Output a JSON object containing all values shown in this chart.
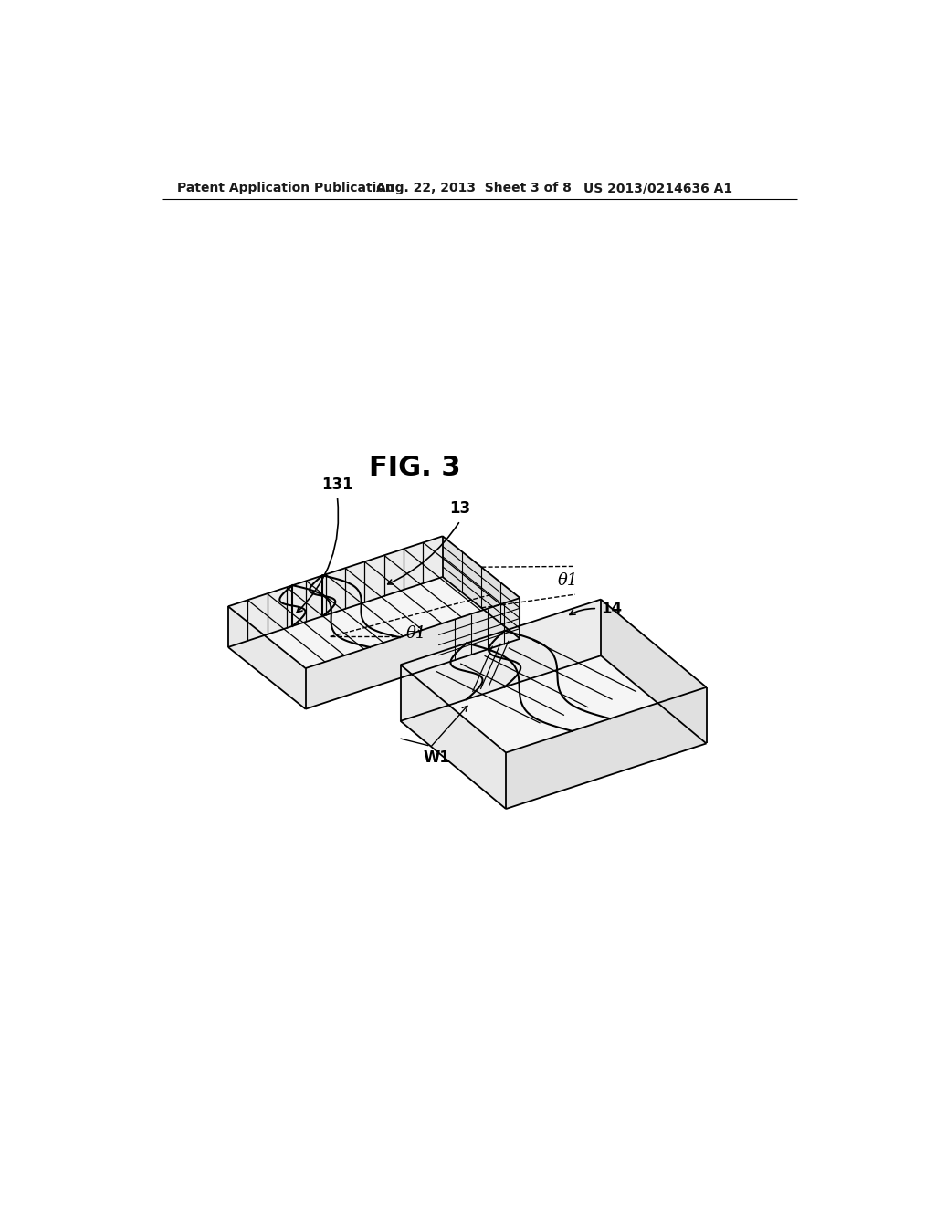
{
  "bg_color": "#ffffff",
  "line_color": "#000000",
  "title": "FIG. 3",
  "header_left": "Patent Application Publication",
  "header_mid": "Aug. 22, 2013  Sheet 3 of 8",
  "header_right": "US 2013/0214636 A1",
  "label_131": "131",
  "label_13": "13",
  "label_14": "14",
  "label_theta1": "θ1",
  "label_W1": "W1"
}
